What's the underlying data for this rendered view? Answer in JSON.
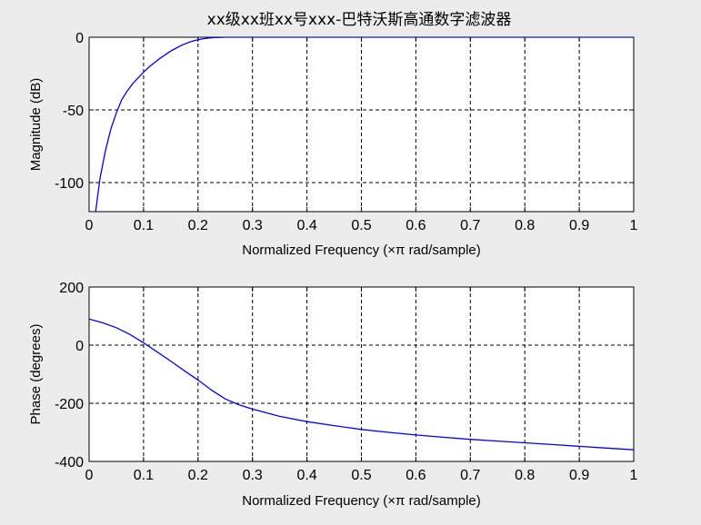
{
  "figure": {
    "title": "xx级xx班xx号xxx-巴特沃斯高通数字滤波器"
  },
  "chart_data": [
    {
      "type": "line",
      "name": "magnitude",
      "xlabel": "Normalized Frequency  (×π rad/sample)",
      "ylabel": "Magnitude (dB)",
      "xlim": [
        0,
        1
      ],
      "ylim": [
        -120,
        0
      ],
      "xticks": [
        0,
        0.1,
        0.2,
        0.3,
        0.4,
        0.5,
        0.6,
        0.7,
        0.8,
        0.9,
        1
      ],
      "xtick_labels": [
        "0",
        "0.1",
        "0.2",
        "0.3",
        "0.4",
        "0.5",
        "0.6",
        "0.7",
        "0.8",
        "0.9",
        "1"
      ],
      "yticks": [
        0,
        -50,
        -100
      ],
      "ytick_labels": [
        "0",
        "-50",
        "-100"
      ],
      "grid": true,
      "color": "#0000ff",
      "x": [
        0.012,
        0.02,
        0.03,
        0.04,
        0.05,
        0.06,
        0.07,
        0.08,
        0.09,
        0.1,
        0.11,
        0.12,
        0.13,
        0.14,
        0.15,
        0.16,
        0.17,
        0.18,
        0.19,
        0.2,
        0.21,
        0.22,
        0.23,
        0.24,
        0.25,
        0.3,
        0.4,
        0.5,
        0.6,
        0.7,
        0.8,
        0.9,
        1.0
      ],
      "y": [
        -120,
        -97,
        -78,
        -63,
        -52,
        -43,
        -37,
        -32,
        -28,
        -24,
        -20.5,
        -17.5,
        -14.5,
        -12,
        -9.5,
        -7.5,
        -5.5,
        -4,
        -2.7,
        -1.7,
        -1,
        -0.5,
        -0.2,
        -0.1,
        0,
        0,
        0,
        0,
        0,
        0,
        0,
        0,
        0
      ]
    },
    {
      "type": "line",
      "name": "phase",
      "xlabel": "Normalized Frequency  (×π rad/sample)",
      "ylabel": "Phase (degrees)",
      "xlim": [
        0,
        1
      ],
      "ylim": [
        -400,
        200
      ],
      "xticks": [
        0,
        0.1,
        0.2,
        0.3,
        0.4,
        0.5,
        0.6,
        0.7,
        0.8,
        0.9,
        1
      ],
      "xtick_labels": [
        "0",
        "0.1",
        "0.2",
        "0.3",
        "0.4",
        "0.5",
        "0.6",
        "0.7",
        "0.8",
        "0.9",
        "1"
      ],
      "yticks": [
        200,
        0,
        -200,
        -400
      ],
      "ytick_labels": [
        "200",
        "0",
        "-200",
        "-400"
      ],
      "grid": true,
      "color": "#0000ff",
      "x": [
        0,
        0.025,
        0.05,
        0.075,
        0.1,
        0.125,
        0.15,
        0.175,
        0.2,
        0.225,
        0.25,
        0.275,
        0.3,
        0.35,
        0.4,
        0.45,
        0.5,
        0.55,
        0.6,
        0.65,
        0.7,
        0.75,
        0.8,
        0.85,
        0.9,
        0.95,
        1.0
      ],
      "y": [
        90,
        77,
        60,
        37,
        8,
        -23,
        -55,
        -88,
        -120,
        -155,
        -185,
        -205,
        -220,
        -245,
        -263,
        -277,
        -290,
        -300,
        -309,
        -317,
        -324,
        -330,
        -336,
        -342,
        -348,
        -354,
        -360
      ]
    }
  ]
}
